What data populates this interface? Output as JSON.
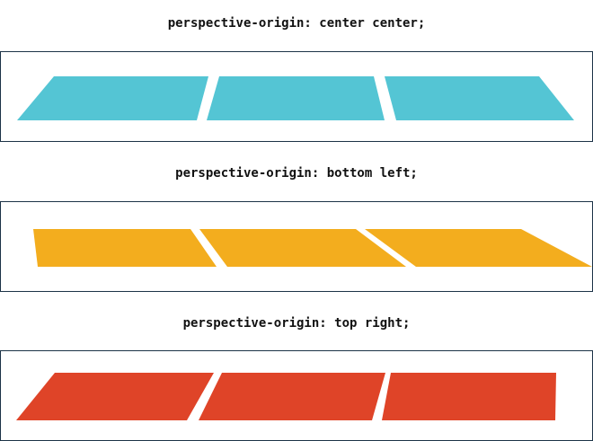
{
  "demos": [
    {
      "caption": "perspective-origin: center center;",
      "color": "#54c5d4",
      "panel_count": 3
    },
    {
      "caption": "perspective-origin: bottom left;",
      "color": "#f3ad1e",
      "panel_count": 3
    },
    {
      "caption": "perspective-origin: top right;",
      "color": "#df4428",
      "panel_count": 3
    }
  ]
}
